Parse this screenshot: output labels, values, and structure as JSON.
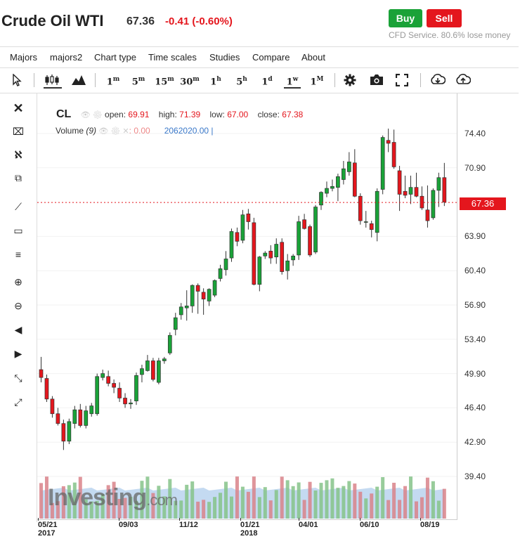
{
  "header": {
    "title": "Crude Oil WTI",
    "price": "67.36",
    "change": "-0.41 (-0.60%)",
    "buy_label": "Buy",
    "sell_label": "Sell",
    "cfd_note": "CFD Service. 80.6% lose money"
  },
  "menu": [
    "Majors",
    "majors2",
    "Chart type",
    "Time scales",
    "Studies",
    "Compare",
    "About"
  ],
  "timeframes": [
    {
      "base": "1",
      "sup": "m"
    },
    {
      "base": "5",
      "sup": "m"
    },
    {
      "base": "15",
      "sup": "m"
    },
    {
      "base": "30",
      "sup": "m"
    },
    {
      "base": "1",
      "sup": "h"
    },
    {
      "base": "5",
      "sup": "h"
    },
    {
      "base": "1",
      "sup": "d"
    },
    {
      "base": "1",
      "sup": "w"
    },
    {
      "base": "1",
      "sup": "M"
    }
  ],
  "selected_timeframe": "1w",
  "toolbar_icons": [
    "cursor-icon",
    "candlestick-chart-icon",
    "mountain-chart-icon",
    "settings-gear-icon",
    "camera-icon",
    "fullscreen-icon",
    "download-icon",
    "upload-icon"
  ],
  "left_tools": [
    "close-icon",
    "crosshair-remove-icon",
    "indicators-icon",
    "copy-layers-icon",
    "trend-line-icon",
    "rectangle-icon",
    "fib-lines-icon",
    "zoom-in-icon",
    "zoom-out-icon",
    "scroll-left-icon",
    "scroll-right-icon",
    "zoom-range-icon",
    "reset-zoom-icon"
  ],
  "legend": {
    "symbol": "CL",
    "open_label": "open:",
    "open": "69.91",
    "high_label": "high:",
    "high": "71.39",
    "low_label": "low:",
    "low": "67.00",
    "close_label": "close:",
    "close": "67.38",
    "volume_label": "Volume",
    "volume_period": "(9)",
    "volume_value": ": 0.00",
    "volume_ma": "2062020.00 |"
  },
  "brand": {
    "name": "Investing",
    "suffix": ".com"
  },
  "current_price_tag": "67.36",
  "colors": {
    "up": "#1aa238",
    "down": "#e4161d",
    "price_line": "#e4161d",
    "volume_up": "#86c38a",
    "volume_down": "#d9828a",
    "volume_ma_fill": "#9cc1e8"
  },
  "chart_data": {
    "type": "candlestick",
    "y_ticks": [
      "74.40",
      "70.90",
      "63.90",
      "60.40",
      "56.90",
      "53.40",
      "49.90",
      "46.40",
      "42.90",
      "39.40"
    ],
    "x_ticks": [
      {
        "label": "05/21",
        "year": "2017"
      },
      {
        "label": "09/03",
        "year": ""
      },
      {
        "label": "11/12",
        "year": ""
      },
      {
        "label": "01/21",
        "year": "2018"
      },
      {
        "label": "04/01",
        "year": ""
      },
      {
        "label": "06/10",
        "year": ""
      },
      {
        "label": "08/19",
        "year": ""
      }
    ],
    "last_price": 67.36,
    "candles": [
      {
        "o": 50.3,
        "h": 51.6,
        "l": 49.0,
        "c": 49.5
      },
      {
        "o": 49.4,
        "h": 49.8,
        "l": 47.0,
        "c": 47.3
      },
      {
        "o": 47.3,
        "h": 47.6,
        "l": 45.4,
        "c": 45.8
      },
      {
        "o": 45.8,
        "h": 46.4,
        "l": 44.6,
        "c": 44.8
      },
      {
        "o": 44.8,
        "h": 45.2,
        "l": 42.1,
        "c": 43.0
      },
      {
        "o": 43.0,
        "h": 45.3,
        "l": 42.7,
        "c": 45.0
      },
      {
        "o": 44.8,
        "h": 46.6,
        "l": 44.3,
        "c": 46.2
      },
      {
        "o": 46.2,
        "h": 46.8,
        "l": 44.4,
        "c": 44.6
      },
      {
        "o": 44.6,
        "h": 46.6,
        "l": 44.3,
        "c": 46.1
      },
      {
        "o": 45.8,
        "h": 46.9,
        "l": 45.5,
        "c": 46.6
      },
      {
        "o": 45.8,
        "h": 49.9,
        "l": 45.6,
        "c": 49.6
      },
      {
        "o": 49.5,
        "h": 50.3,
        "l": 49.2,
        "c": 49.9
      },
      {
        "o": 49.6,
        "h": 50.2,
        "l": 48.6,
        "c": 48.9
      },
      {
        "o": 48.9,
        "h": 49.3,
        "l": 47.9,
        "c": 48.5
      },
      {
        "o": 48.4,
        "h": 49.0,
        "l": 47.0,
        "c": 47.4
      },
      {
        "o": 47.4,
        "h": 47.9,
        "l": 46.4,
        "c": 46.8
      },
      {
        "o": 46.8,
        "h": 47.3,
        "l": 46.3,
        "c": 46.9
      },
      {
        "o": 47.1,
        "h": 50.0,
        "l": 46.7,
        "c": 49.7
      },
      {
        "o": 49.8,
        "h": 50.8,
        "l": 49.0,
        "c": 50.4
      },
      {
        "o": 50.2,
        "h": 51.8,
        "l": 50.1,
        "c": 51.2
      },
      {
        "o": 51.2,
        "h": 51.5,
        "l": 49.1,
        "c": 49.3
      },
      {
        "o": 49.0,
        "h": 51.5,
        "l": 48.8,
        "c": 51.2
      },
      {
        "o": 51.2,
        "h": 51.6,
        "l": 50.9,
        "c": 51.4
      },
      {
        "o": 52.0,
        "h": 54.1,
        "l": 51.8,
        "c": 53.8
      },
      {
        "o": 54.4,
        "h": 56.1,
        "l": 53.8,
        "c": 55.6
      },
      {
        "o": 55.9,
        "h": 57.1,
        "l": 55.4,
        "c": 56.7
      },
      {
        "o": 56.6,
        "h": 58.4,
        "l": 55.3,
        "c": 56.8
      },
      {
        "o": 56.8,
        "h": 59.0,
        "l": 56.1,
        "c": 58.9
      },
      {
        "o": 58.9,
        "h": 59.1,
        "l": 56.0,
        "c": 58.3
      },
      {
        "o": 58.2,
        "h": 58.6,
        "l": 55.9,
        "c": 57.5
      },
      {
        "o": 57.3,
        "h": 58.6,
        "l": 56.8,
        "c": 58.5
      },
      {
        "o": 57.9,
        "h": 59.5,
        "l": 57.7,
        "c": 59.4
      },
      {
        "o": 59.6,
        "h": 61.0,
        "l": 59.3,
        "c": 60.6
      },
      {
        "o": 60.5,
        "h": 62.4,
        "l": 59.9,
        "c": 61.6
      },
      {
        "o": 61.7,
        "h": 64.7,
        "l": 61.3,
        "c": 64.4
      },
      {
        "o": 64.3,
        "h": 64.8,
        "l": 62.9,
        "c": 63.4
      },
      {
        "o": 63.5,
        "h": 66.6,
        "l": 63.2,
        "c": 66.1
      },
      {
        "o": 66.2,
        "h": 66.7,
        "l": 64.6,
        "c": 65.4
      },
      {
        "o": 65.3,
        "h": 65.8,
        "l": 58.9,
        "c": 59.0
      },
      {
        "o": 59.0,
        "h": 61.9,
        "l": 58.3,
        "c": 61.8
      },
      {
        "o": 61.9,
        "h": 62.4,
        "l": 61.6,
        "c": 62.2
      },
      {
        "o": 62.4,
        "h": 63.0,
        "l": 61.1,
        "c": 61.7
      },
      {
        "o": 61.8,
        "h": 63.7,
        "l": 61.1,
        "c": 63.1
      },
      {
        "o": 63.3,
        "h": 63.7,
        "l": 60.0,
        "c": 60.3
      },
      {
        "o": 60.4,
        "h": 62.1,
        "l": 59.5,
        "c": 61.4
      },
      {
        "o": 61.5,
        "h": 62.1,
        "l": 60.9,
        "c": 61.9
      },
      {
        "o": 62.0,
        "h": 66.0,
        "l": 61.5,
        "c": 65.4
      },
      {
        "o": 65.6,
        "h": 66.2,
        "l": 64.6,
        "c": 64.7
      },
      {
        "o": 64.9,
        "h": 65.1,
        "l": 61.8,
        "c": 62.0
      },
      {
        "o": 62.3,
        "h": 67.1,
        "l": 62.1,
        "c": 66.9
      },
      {
        "o": 67.1,
        "h": 68.5,
        "l": 66.6,
        "c": 68.4
      },
      {
        "o": 68.3,
        "h": 69.5,
        "l": 67.9,
        "c": 68.8
      },
      {
        "o": 68.8,
        "h": 69.7,
        "l": 68.5,
        "c": 69.0
      },
      {
        "o": 68.9,
        "h": 70.3,
        "l": 67.5,
        "c": 70.0
      },
      {
        "o": 69.7,
        "h": 71.6,
        "l": 69.2,
        "c": 70.8
      },
      {
        "o": 70.5,
        "h": 72.5,
        "l": 70.1,
        "c": 71.5
      },
      {
        "o": 71.4,
        "h": 72.8,
        "l": 67.9,
        "c": 68.0
      },
      {
        "o": 68.0,
        "h": 68.3,
        "l": 65.1,
        "c": 65.5
      },
      {
        "o": 65.4,
        "h": 66.5,
        "l": 64.8,
        "c": 65.4
      },
      {
        "o": 65.2,
        "h": 65.5,
        "l": 63.8,
        "c": 64.6
      },
      {
        "o": 64.3,
        "h": 68.8,
        "l": 63.4,
        "c": 68.5
      },
      {
        "o": 68.7,
        "h": 74.2,
        "l": 68.2,
        "c": 74.0
      },
      {
        "o": 73.7,
        "h": 74.9,
        "l": 72.5,
        "c": 73.4
      },
      {
        "o": 73.5,
        "h": 74.8,
        "l": 70.8,
        "c": 71.0
      },
      {
        "o": 70.6,
        "h": 71.1,
        "l": 66.5,
        "c": 68.2
      },
      {
        "o": 68.5,
        "h": 70.1,
        "l": 67.8,
        "c": 68.1
      },
      {
        "o": 68.2,
        "h": 70.1,
        "l": 67.2,
        "c": 68.9
      },
      {
        "o": 68.9,
        "h": 70.4,
        "l": 67.9,
        "c": 68.0
      },
      {
        "o": 68.0,
        "h": 69.0,
        "l": 66.6,
        "c": 66.8
      },
      {
        "o": 66.6,
        "h": 69.1,
        "l": 64.8,
        "c": 65.5
      },
      {
        "o": 65.8,
        "h": 68.8,
        "l": 65.6,
        "c": 68.6
      },
      {
        "o": 68.6,
        "h": 70.4,
        "l": 66.9,
        "c": 69.9
      },
      {
        "o": 69.9,
        "h": 71.4,
        "l": 67.0,
        "c": 67.4
      }
    ]
  }
}
